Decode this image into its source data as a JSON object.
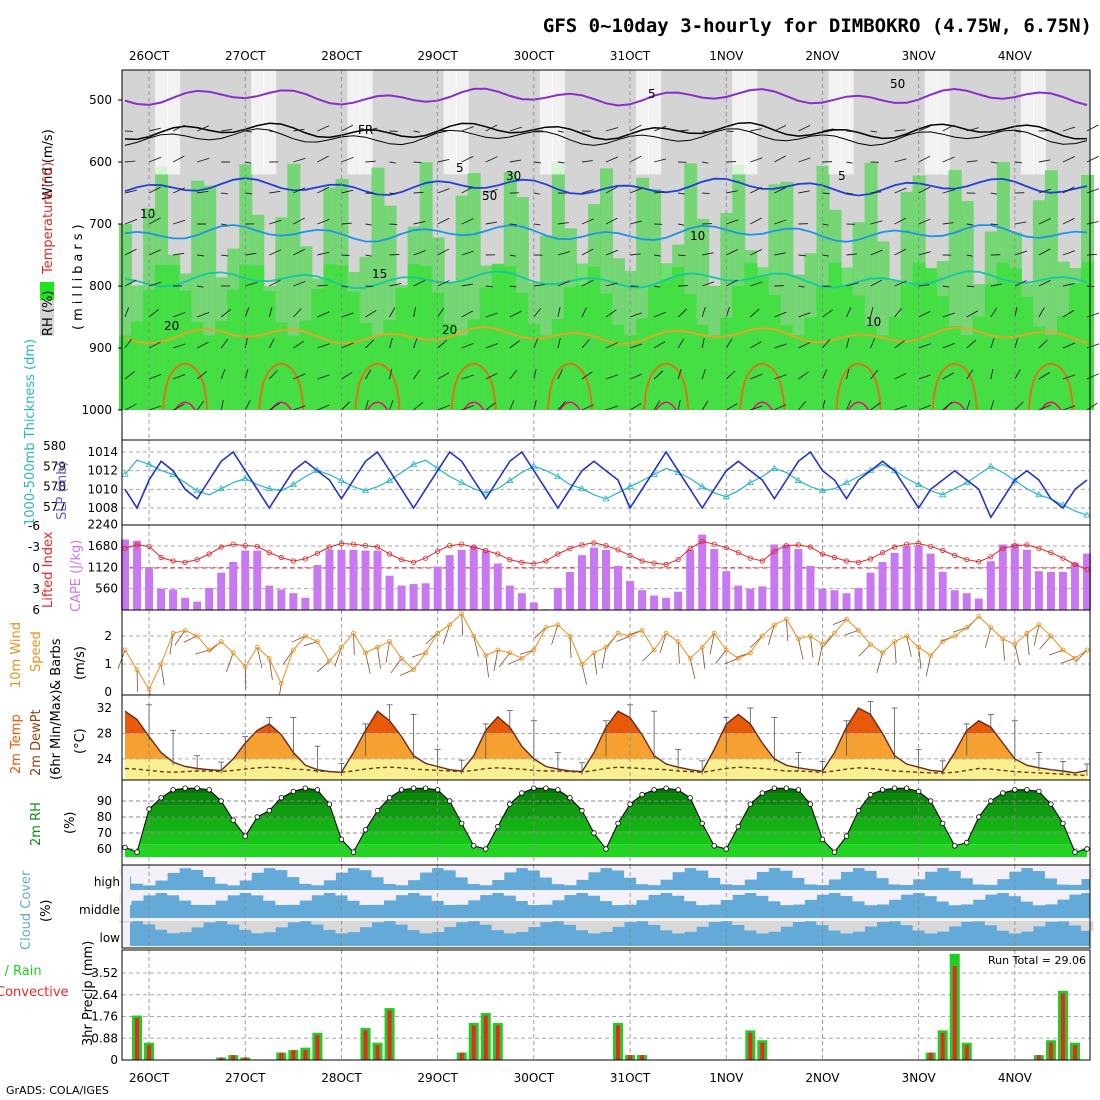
{
  "title": "GFS 0~10day 3-hourly for DIMBOKRO (4.75W, 6.75N)",
  "footer": "GrADS: COLA/IGES",
  "colors": {
    "rh_light": "#d4d4d4",
    "rh_mid": "#a6d6a6",
    "rh_green": "#6cd66c",
    "rh_bright": "#1ee61e",
    "temp_purple": "#8a2ec8",
    "temp_blue": "#2040d8",
    "temp_lightblue": "#1e96e6",
    "temp_teal": "#14c8a0",
    "temp_orange": "#f0a020",
    "temp_dkorange": "#e86c14",
    "temp_magenta": "#e01478",
    "slp": "#2034c8",
    "thickness": "#28b4c8",
    "li": "#e02828",
    "cape": "#c878f0",
    "wind10m": "#e8901e",
    "temp_hot": "#e85a0a",
    "temp_warm": "#f5a030",
    "temp_mild": "#f8f090",
    "rh2m": "#108c10",
    "cloud": "#64aad8",
    "cloud_bg": "#f4f0f8",
    "precip_total": "#22cc22",
    "precip_conv": "#e82828"
  },
  "x_axis": {
    "dates": [
      "26OCT",
      "27OCT",
      "28OCT",
      "29OCT",
      "30OCT",
      "31OCT",
      "1NOV",
      "2NOV",
      "3NOV",
      "4NOV"
    ]
  },
  "panels": {
    "upper": {
      "ylabel_wind": "Wind (m/s)",
      "ylabel_temp": "Temperature (°C)",
      "ylabel_rh": "RH (%)",
      "ylabel_units": "(millibars)",
      "ticks": [
        "500",
        "600",
        "700",
        "800",
        "900",
        "1000"
      ],
      "contour_labels": [
        "5",
        "FR",
        "5",
        "5",
        "10",
        "10",
        "15",
        "20",
        "20",
        "10",
        "50",
        "30",
        "50"
      ]
    },
    "slp": {
      "ylabel_a": "1000-500mb Thickness (dm)",
      "ylabel_b": "SLP (mb)",
      "ticks_left": [
        "580",
        "579",
        "578",
        "577"
      ],
      "ticks_right": [
        "1014",
        "1012",
        "1010",
        "1008"
      ]
    },
    "cape": {
      "ylabel_a": "Lifted Index",
      "ylabel_b": "CAPE (J/kg)",
      "ticks_left": [
        "-6",
        "-3",
        "0",
        "3",
        "6"
      ],
      "ticks_right": [
        "2240",
        "1680",
        "1120",
        "560"
      ]
    },
    "wind": {
      "ylabel_a": "10m Wind",
      "ylabel_b": "Speed",
      "ylabel_c": "& Barbs",
      "ylabel_d": "(m/s)",
      "ticks": [
        "2",
        "1",
        "0"
      ]
    },
    "temp": {
      "ylabel_a": "2m Temp",
      "ylabel_b": "2m DewPt",
      "ylabel_c": "(6hr Min/Max)",
      "ylabel_d": "(°C)",
      "ticks": [
        "32",
        "28",
        "24"
      ]
    },
    "rh": {
      "ylabel_a": "2m RH",
      "ylabel_b": "(%)",
      "ticks": [
        "90",
        "80",
        "70",
        "60"
      ]
    },
    "cloud": {
      "ylabel_a": "Cloud Cover",
      "ylabel_b": "(%)",
      "levels": [
        "high",
        "middle",
        "low"
      ]
    },
    "precip": {
      "ylabel_a": "Total / Rain",
      "ylabel_b": "Convective",
      "ylabel_c": "3hr Precip (mm)",
      "ticks": [
        "3.52",
        "2.64",
        "1.76",
        "0.88",
        "0"
      ],
      "run_total": "Run Total = 29.06"
    }
  },
  "chart_data": [
    {
      "type": "line",
      "panel": "1000-500mb Thickness (dm) & SLP (mb)",
      "x_label": "3-hourly steps (81)",
      "series": [
        {
          "name": "SLP (mb)",
          "values": [
            1010,
            1008,
            1011,
            1013,
            1012,
            1010,
            1009,
            1011,
            1013,
            1014,
            1012,
            1010,
            1008,
            1010,
            1012,
            1013,
            1012,
            1011,
            1009,
            1011,
            1013,
            1014,
            1012,
            1010,
            1008,
            1010,
            1012,
            1014,
            1013,
            1011,
            1009,
            1011,
            1013,
            1014,
            1012,
            1010,
            1008,
            1010,
            1012,
            1013,
            1012,
            1011,
            1008,
            1010,
            1012,
            1014,
            1012,
            1010,
            1008,
            1010,
            1012,
            1013,
            1012,
            1011,
            1009,
            1011,
            1013,
            1014,
            1012,
            1011,
            1009,
            1011,
            1012,
            1013,
            1012,
            1010,
            1008,
            1010,
            1011,
            1012,
            1011,
            1010,
            1007,
            1009,
            1011,
            1012,
            1011,
            1009,
            1008,
            1010,
            1011
          ]
        },
        {
          "name": "1000-500mb Thickness (dm)",
          "values": [
            578.6,
            579.3,
            579.1,
            578.8,
            578.6,
            578.2,
            577.8,
            577.6,
            577.9,
            578.2,
            578.4,
            578.1,
            577.9,
            577.8,
            578.1,
            578.5,
            578.8,
            578.6,
            578.3,
            578.0,
            577.8,
            578.0,
            578.3,
            578.7,
            579.1,
            579.3,
            578.9,
            578.5,
            578.2,
            577.9,
            577.7,
            577.9,
            578.3,
            578.7,
            579.0,
            578.8,
            578.5,
            578.1,
            577.9,
            577.6,
            577.4,
            577.7,
            578.0,
            578.3,
            578.6,
            578.9,
            578.7,
            578.4,
            578.0,
            577.7,
            577.5,
            577.8,
            578.2,
            578.5,
            578.9,
            578.7,
            578.3,
            578.0,
            577.8,
            577.9,
            578.2,
            578.5,
            578.8,
            579.1,
            578.8,
            578.4,
            578.1,
            577.8,
            577.6,
            577.9,
            578.2,
            578.6,
            579.0,
            578.7,
            578.3,
            577.9,
            577.6,
            577.4,
            577.1,
            576.8,
            576.6
          ]
        }
      ]
    },
    {
      "type": "bar",
      "panel": "Lifted Index & CAPE (J/kg)",
      "series": [
        {
          "name": "CAPE (J/kg)",
          "values": [
            1850,
            1820,
            1100,
            560,
            540,
            320,
            220,
            580,
            980,
            1260,
            1560,
            1560,
            640,
            540,
            440,
            320,
            1180,
            1580,
            1580,
            1580,
            1560,
            1560,
            900,
            640,
            680,
            700,
            1140,
            1440,
            1580,
            1680,
            1560,
            1220,
            640,
            440,
            200,
            20,
            580,
            1000,
            1440,
            1640,
            1580,
            1160,
            760,
            520,
            380,
            320,
            480,
            1580,
            1980,
            1600,
            1020,
            640,
            560,
            620,
            1720,
            1720,
            1600,
            1160,
            560,
            520,
            440,
            580,
            980,
            1260,
            1500,
            1680,
            1680,
            1480,
            1000,
            520,
            440,
            300,
            1280,
            1720,
            1740,
            1580,
            1020,
            1000,
            1000,
            1240,
            1480
          ]
        },
        {
          "name": "Lifted Index",
          "values": [
            -2.8,
            -3.3,
            -3.1,
            -1.5,
            -1.0,
            -0.8,
            -1.2,
            -2.0,
            -3.0,
            -3.4,
            -3.2,
            -3.1,
            -2.2,
            -1.5,
            -1.0,
            -1.3,
            -2.1,
            -3.0,
            -3.5,
            -3.4,
            -3.2,
            -3.0,
            -2.0,
            -1.2,
            -0.8,
            -1.4,
            -2.4,
            -3.2,
            -3.4,
            -3.0,
            -2.5,
            -2.0,
            -1.2,
            -0.8,
            -0.6,
            -1.0,
            -2.0,
            -2.8,
            -3.3,
            -3.6,
            -3.2,
            -2.6,
            -1.8,
            -1.0,
            -0.7,
            -0.5,
            -1.2,
            -2.8,
            -3.8,
            -3.4,
            -2.9,
            -2.2,
            -1.4,
            -1.0,
            -2.4,
            -3.2,
            -3.3,
            -3.0,
            -2.0,
            -1.5,
            -1.0,
            -0.8,
            -1.3,
            -2.2,
            -3.0,
            -3.4,
            -3.5,
            -3.1,
            -2.5,
            -1.8,
            -1.2,
            -0.9,
            -1.6,
            -2.8,
            -3.2,
            -3.3,
            -2.8,
            -2.2,
            -1.4,
            -0.5,
            0.2
          ]
        }
      ]
    },
    {
      "type": "line",
      "panel": "10m Wind Speed (m/s)",
      "series": [
        {
          "name": "10m Wind Speed",
          "values": [
            1.5,
            0.8,
            0.1,
            1.0,
            2.1,
            2.2,
            2.0,
            1.5,
            1.8,
            1.4,
            0.9,
            1.6,
            1.2,
            0.3,
            1.5,
            2.0,
            1.8,
            1.1,
            1.6,
            2.1,
            1.4,
            1.6,
            1.8,
            1.2,
            0.8,
            1.4,
            2.1,
            2.4,
            2.8,
            2.0,
            1.3,
            1.5,
            1.4,
            1.2,
            1.5,
            2.3,
            2.4,
            2.0,
            1.0,
            1.4,
            1.6,
            2.1,
            2.0,
            2.2,
            1.5,
            2.1,
            1.8,
            1.2,
            1.6,
            2.1,
            1.5,
            1.2,
            1.4,
            2.0,
            2.4,
            2.6,
            1.9,
            2.0,
            1.7,
            2.1,
            2.6,
            2.2,
            1.7,
            1.4,
            1.8,
            2.0,
            1.6,
            1.3,
            1.8,
            2.0,
            2.3,
            2.7,
            2.3,
            1.9,
            1.7,
            2.1,
            2.4,
            2.0,
            1.5,
            1.2,
            1.5
          ]
        }
      ]
    },
    {
      "type": "area",
      "panel": "2m Temp / 2m DewPt (°C)",
      "series": [
        {
          "name": "2m Temp",
          "values": [
            31.5,
            30.2,
            27.5,
            25.0,
            23.5,
            22.8,
            22.5,
            22.3,
            22.2,
            24.0,
            26.5,
            28.5,
            29.5,
            27.8,
            25.0,
            23.0,
            22.3,
            22.0,
            21.9,
            25.0,
            28.5,
            31.5,
            30.0,
            27.5,
            24.5,
            23.3,
            22.8,
            22.3,
            22.1,
            24.5,
            28.5,
            30.6,
            29.0,
            26.0,
            24.0,
            22.8,
            22.4,
            22.1,
            22.0,
            25.0,
            29.0,
            31.5,
            30.5,
            27.8,
            24.5,
            23.2,
            22.7,
            22.3,
            22.0,
            25.5,
            29.5,
            31.0,
            29.5,
            26.5,
            24.0,
            23.0,
            22.6,
            22.3,
            22.1,
            25.0,
            29.0,
            32.0,
            31.0,
            28.0,
            24.5,
            23.2,
            22.7,
            22.2,
            22.0,
            25.0,
            28.5,
            30.0,
            29.0,
            26.5,
            24.0,
            23.0,
            22.6,
            22.3,
            22.1,
            21.8,
            22.2
          ]
        },
        {
          "name": "2m DewPt",
          "values": [
            22.5,
            22.4,
            22.2,
            22.0,
            21.9,
            22.0,
            22.1,
            22.1,
            22.0,
            22.2,
            22.4,
            22.6,
            22.7,
            22.6,
            22.4,
            22.3,
            22.1,
            22.0,
            21.9,
            22.1,
            22.4,
            22.6,
            22.7,
            22.6,
            22.4,
            22.3,
            22.2,
            22.1,
            22.0,
            22.2,
            22.5,
            22.6,
            22.5,
            22.4,
            22.2,
            22.1,
            22.1,
            22.0,
            21.9,
            22.2,
            22.5,
            22.7,
            22.6,
            22.5,
            22.4,
            22.3,
            22.1,
            22.0,
            21.9,
            22.2,
            22.5,
            22.7,
            22.6,
            22.5,
            22.3,
            22.1,
            22.1,
            22.0,
            21.9,
            22.1,
            22.4,
            22.6,
            22.5,
            22.3,
            22.1,
            22.0,
            21.9,
            21.8,
            21.8,
            21.9,
            22.2,
            22.5,
            22.4,
            22.2,
            22.0,
            21.9,
            21.8,
            21.7,
            21.6,
            21.5,
            21.4
          ]
        }
      ]
    },
    {
      "type": "area",
      "panel": "2m RH (%)",
      "series": [
        {
          "name": "2m RH",
          "values": [
            61,
            58,
            85,
            92,
            97,
            98,
            98,
            97,
            90,
            78,
            68,
            80,
            84,
            92,
            96,
            98,
            97,
            88,
            66,
            58,
            72,
            84,
            92,
            97,
            98,
            98,
            97,
            90,
            76,
            62,
            60,
            74,
            88,
            95,
            98,
            98,
            97,
            92,
            84,
            70,
            60,
            76,
            88,
            94,
            97,
            98,
            97,
            92,
            76,
            62,
            60,
            74,
            88,
            95,
            98,
            98,
            97,
            88,
            66,
            58,
            68,
            84,
            94,
            97,
            98,
            98,
            96,
            90,
            76,
            62,
            64,
            80,
            90,
            95,
            97,
            97,
            96,
            88,
            76,
            58,
            60
          ]
        }
      ]
    },
    {
      "type": "bar",
      "panel": "3hr Precip (mm)",
      "series": [
        {
          "name": "Total / Rain",
          "values": [
            0,
            1.8,
            0.7,
            0,
            0,
            0,
            0,
            0,
            0.1,
            0.2,
            0.1,
            0,
            0,
            0.3,
            0.4,
            0.5,
            1.1,
            0,
            0,
            0,
            1.3,
            0.7,
            2.1,
            0,
            0,
            0,
            0,
            0,
            0.3,
            1.5,
            1.9,
            1.5,
            0,
            0,
            0,
            0,
            0,
            0,
            0,
            0,
            0,
            1.5,
            0.2,
            0.2,
            0,
            0,
            0,
            0,
            0,
            0,
            0,
            0,
            1.2,
            0.8,
            0,
            0,
            0,
            0,
            0,
            0,
            0,
            0,
            0,
            0,
            0,
            0,
            0,
            0.3,
            1.2,
            4.3,
            0.7,
            0,
            0,
            0,
            0,
            0,
            0.2,
            0.8,
            2.8,
            0.7,
            0
          ]
        },
        {
          "name": "Convective",
          "values": [
            0,
            1.7,
            0.6,
            0,
            0,
            0,
            0,
            0,
            0.1,
            0.2,
            0.1,
            0,
            0,
            0.3,
            0.4,
            0.4,
            1.0,
            0,
            0,
            0,
            1.2,
            0.6,
            2.0,
            0,
            0,
            0,
            0,
            0,
            0.3,
            1.4,
            1.8,
            1.4,
            0,
            0,
            0,
            0,
            0,
            0,
            0,
            0,
            0,
            1.4,
            0.2,
            0.2,
            0,
            0,
            0,
            0,
            0,
            0,
            0,
            0,
            1.1,
            0.7,
            0,
            0,
            0,
            0,
            0,
            0,
            0,
            0,
            0,
            0,
            0,
            0,
            0,
            0.3,
            1.1,
            3.8,
            0.6,
            0,
            0,
            0,
            0,
            0,
            0.2,
            0.7,
            2.7,
            0.6,
            0
          ]
        }
      ]
    }
  ]
}
